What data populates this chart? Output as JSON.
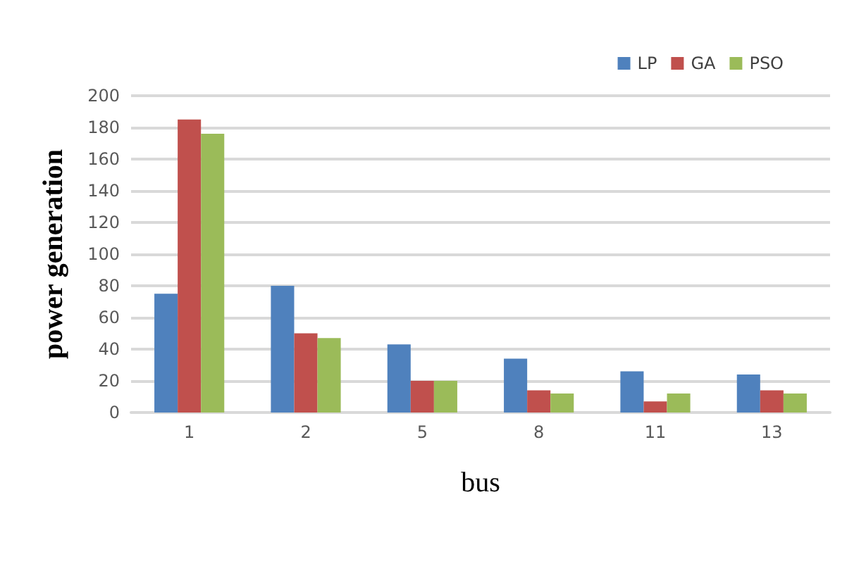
{
  "chart_data": {
    "type": "bar",
    "xlabel": "bus",
    "ylabel": "power generation",
    "categories": [
      "1",
      "2",
      "5",
      "8",
      "11",
      "13"
    ],
    "series": [
      {
        "name": "LP",
        "color": "#4f81bd",
        "values": [
          75,
          80,
          43,
          34,
          26,
          24
        ]
      },
      {
        "name": "GA",
        "color": "#c0504d",
        "values": [
          185,
          50,
          20,
          14,
          7,
          14
        ]
      },
      {
        "name": "PSO",
        "color": "#9bbb59",
        "values": [
          176,
          47,
          20,
          12,
          12,
          12
        ]
      }
    ],
    "ylim": [
      0,
      200
    ],
    "yticks": [
      0,
      20,
      40,
      60,
      80,
      100,
      120,
      140,
      160,
      180,
      200
    ],
    "grid": "y",
    "legend": "top right"
  }
}
